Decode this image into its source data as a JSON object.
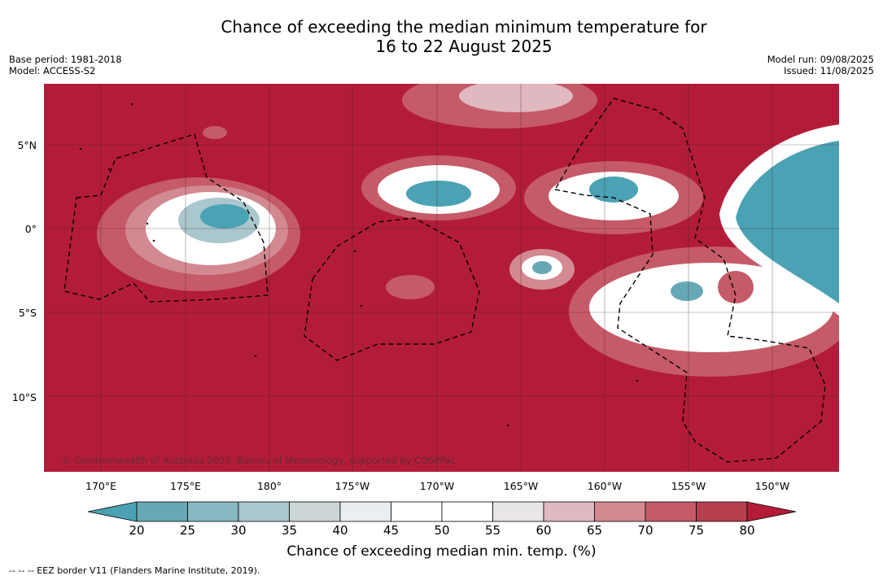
{
  "title": {
    "line1": "Chance of exceeding the median minimum temperature for",
    "line2": "16 to 22 August 2025"
  },
  "meta": {
    "base_period": "Base period: 1981-2018",
    "model": "Model: ACCESS-S2",
    "model_run": "Model run: 09/08/2025",
    "issued": "Issued: 11/08/2025"
  },
  "map": {
    "latitude_labels": [
      "5°N",
      "0°",
      "5°S",
      "10°S"
    ],
    "longitude_labels": [
      "170°E",
      "175°E",
      "180°",
      "175°W",
      "170°W",
      "165°W",
      "160°W",
      "155°W",
      "150°W"
    ],
    "copyright": "© Commonwealth of Australia 2025, Bureau of Meteorology, supported by COSPPac",
    "dominant_color": "#b31c38"
  },
  "colorbar": {
    "ticks": [
      "20",
      "25",
      "30",
      "35",
      "40",
      "45",
      "50",
      "55",
      "60",
      "65",
      "70",
      "75",
      "80"
    ],
    "colors": [
      "#67a8b6",
      "#87b7c3",
      "#aac7cd",
      "#ccd6d8",
      "#e8eef1",
      "#ffffff",
      "#ffffff",
      "#e9e6e8",
      "#e0b8bf",
      "#d38992",
      "#c55b68",
      "#b7404f"
    ],
    "under_color": "#4aa2b4",
    "over_color": "#b31c38",
    "caption": "Chance of exceeding median min. temp. (%)"
  },
  "footnote": "--  --  -- EEZ border V11 (Flanders Marine Institute, 2019)."
}
